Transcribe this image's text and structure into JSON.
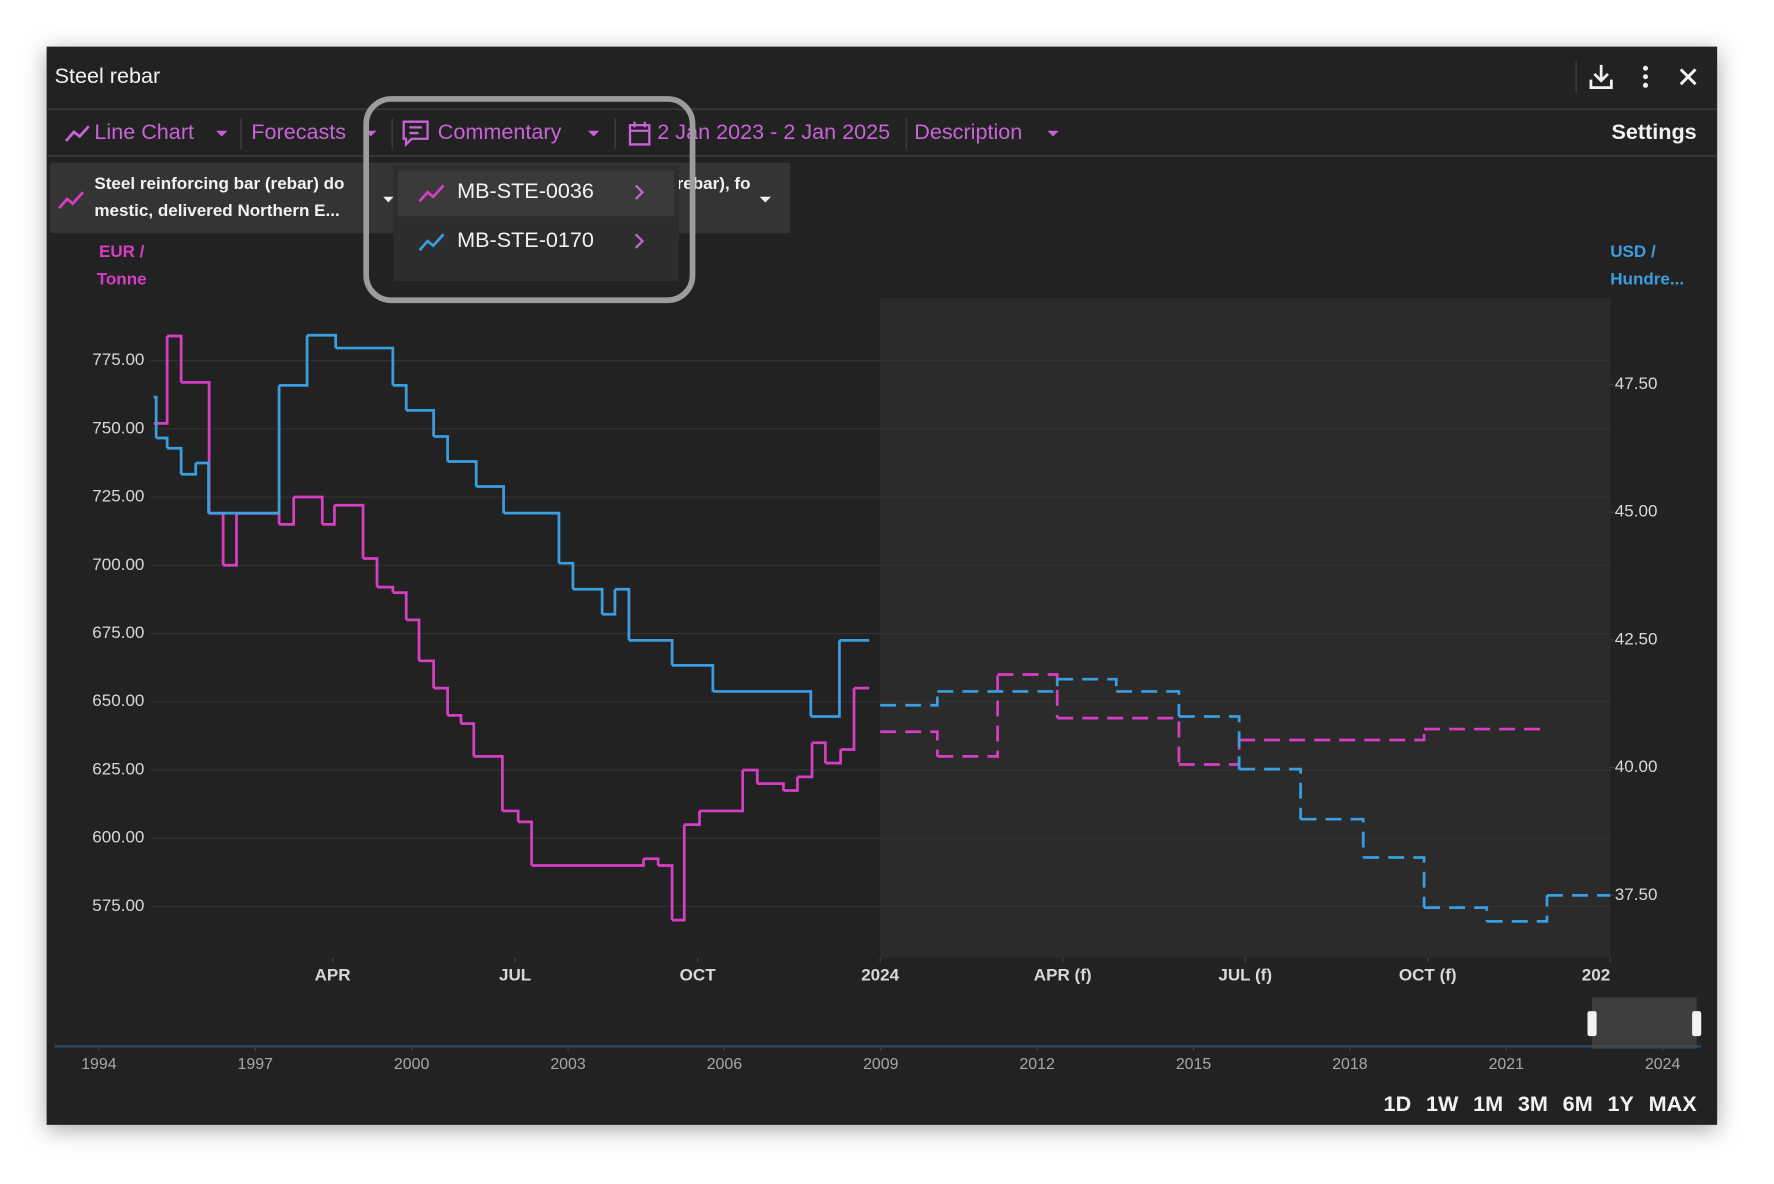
{
  "window": {
    "title": "Steel rebar"
  },
  "toolbar": {
    "chart_type": "Line Chart",
    "forecasts": "Forecasts",
    "commentary": "Commentary",
    "date_range": "2 Jan 2023 - 2 Jan 2025",
    "description": "Description",
    "settings": "Settings"
  },
  "legend": {
    "items": [
      {
        "line1": "Steel reinforcing bar (rebar) do",
        "line2": "mestic, delivered Northern E..."
      },
      {
        "line1": "Steel reinforcing bar (rebar), fo"
      }
    ]
  },
  "chart_data": {
    "type": "step-line",
    "ylabel": [
      "EUR /",
      "Tonne"
    ],
    "y2label": [
      "USD /",
      "Hundre..."
    ],
    "xlim": [
      0,
      24
    ],
    "xticks": [
      {
        "value": 3,
        "label": "APR"
      },
      {
        "value": 6,
        "label": "JUL"
      },
      {
        "value": 9,
        "label": "OCT"
      },
      {
        "value": 12,
        "label": "2024"
      },
      {
        "value": 15,
        "label": "APR (f)"
      },
      {
        "value": 18,
        "label": "JUL (f)"
      },
      {
        "value": 21,
        "label": "OCT (f)"
      },
      {
        "value": 24,
        "label": "202"
      }
    ],
    "ylim": [
      556.25,
      797.92
    ],
    "yticks": [
      {
        "value": 575,
        "label": "575.00"
      },
      {
        "value": 600,
        "label": "600.00"
      },
      {
        "value": 625,
        "label": "625.00"
      },
      {
        "value": 650,
        "label": "650.00"
      },
      {
        "value": 675,
        "label": "675.00"
      },
      {
        "value": 700,
        "label": "700.00"
      },
      {
        "value": 725,
        "label": "725.00"
      },
      {
        "value": 750,
        "label": "750.00"
      },
      {
        "value": 775,
        "label": "775.00"
      }
    ],
    "y2lim": [
      36.28,
      49.19
    ],
    "y2ticks": [
      {
        "value": 37.5,
        "label": "37.50"
      },
      {
        "value": 40,
        "label": "40.00"
      },
      {
        "value": 42.5,
        "label": "42.50"
      },
      {
        "value": 45,
        "label": "45.00"
      },
      {
        "value": 47.5,
        "label": "47.50"
      }
    ],
    "grid": true,
    "forecast_line": "dashed",
    "series": [
      {
        "name": "MB-STE-0036",
        "color": "#d63fc4",
        "axis": "y",
        "x": [
          0.06,
          0.28,
          0.51,
          0.97,
          1.2,
          1.42,
          2.12,
          2.36,
          2.83,
          3.03,
          3.5,
          3.73,
          3.99,
          4.21,
          4.42,
          4.66,
          4.89,
          5.11,
          5.32,
          5.79,
          6.05,
          6.27,
          8.11,
          8.35,
          8.58,
          8.78,
          9.03,
          9.74,
          9.98,
          10.41,
          10.64,
          10.88,
          11.1,
          11.35,
          11.57,
          11.82
        ],
        "values": [
          752,
          784,
          767,
          719,
          700,
          719,
          715,
          725,
          715,
          722,
          702.5,
          692,
          690,
          680,
          665,
          655,
          645,
          642,
          630,
          610,
          606,
          590,
          592.5,
          590,
          570,
          605,
          610,
          625,
          620,
          617.5,
          622.5,
          635,
          627.5,
          632.5,
          655,
          655
        ],
        "forecast_x": [
          12,
          12.94,
          13.93,
          14.91,
          16.91,
          17.9,
          20.94,
          22.94
        ],
        "forecast_values": [
          639,
          630,
          660,
          644,
          627,
          636,
          640,
          640
        ]
      },
      {
        "name": "MB-STE-0170",
        "color": "#3a9ee0",
        "axis": "y2",
        "x": [
          0.06,
          0.1,
          0.28,
          0.51,
          0.75,
          0.96,
          2.12,
          2.58,
          3.05,
          3.99,
          4.21,
          4.66,
          4.89,
          5.36,
          5.81,
          6.72,
          6.95,
          7.43,
          7.64,
          7.87,
          8.58,
          9.25,
          10.86,
          11.33,
          11.82
        ],
        "values": [
          47.25,
          46.45,
          46.25,
          45.74,
          45.96,
          44.98,
          47.48,
          48.46,
          48.21,
          47.48,
          46.99,
          46.48,
          45.99,
          45.5,
          44.98,
          44,
          43.49,
          43,
          43.49,
          42.49,
          42,
          41.49,
          41,
          42.49,
          42.49
        ],
        "forecast_x": [
          12,
          12.94,
          14.91,
          15.88,
          16.91,
          17.9,
          18.91,
          19.94,
          20.94,
          21.97,
          22.96,
          24
        ],
        "forecast_values": [
          41.22,
          41.49,
          41.73,
          41.49,
          41,
          39.97,
          38.99,
          38.24,
          37.26,
          36.99,
          37.5,
          37.5
        ]
      }
    ]
  },
  "navigator": {
    "xlim": [
      1993.15,
      2024.74
    ],
    "xticks": [
      1994,
      1997,
      2000,
      2003,
      2006,
      2009,
      2012,
      2015,
      2018,
      2021,
      2024
    ]
  },
  "range_buttons": [
    "1D",
    "1W",
    "1M",
    "3M",
    "6M",
    "1Y",
    "MAX"
  ]
}
